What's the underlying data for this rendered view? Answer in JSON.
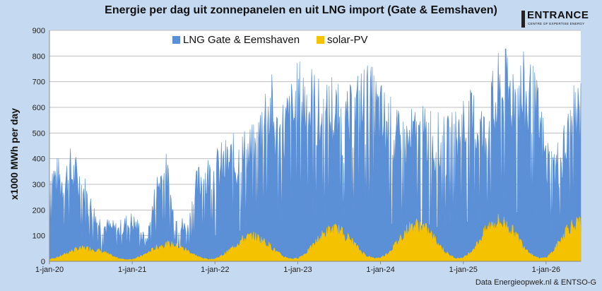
{
  "chart_data": {
    "type": "area",
    "title": "Energie per dag uit zonnepanelen en uit LNG import (Gate & Eemshaven)",
    "ylabel": "x1000 MWh per day",
    "xlabel": "",
    "ylim": [
      0,
      900
    ],
    "yticks": [
      "0",
      "100",
      "200",
      "300",
      "400",
      "500",
      "600",
      "700",
      "800",
      "900"
    ],
    "x_tick_labels": [
      "1-jan-20",
      "1-jan-21",
      "1-jan-22",
      "1-jan-23",
      "1-jan-24",
      "1-jan-25",
      "1-jan-26"
    ],
    "x_range_years": [
      2020.0,
      2026.42
    ],
    "grid": "horizontal",
    "legend_position": "top-center",
    "series": [
      {
        "name": "LNG Gate & Eemshaven",
        "color": "#5b8fd6",
        "x": [
          2020.0,
          2020.08,
          2020.17,
          2020.25,
          2020.33,
          2020.42,
          2020.5,
          2020.58,
          2020.67,
          2020.75,
          2020.83,
          2020.92,
          2021.0,
          2021.08,
          2021.17,
          2021.25,
          2021.33,
          2021.42,
          2021.5,
          2021.58,
          2021.67,
          2021.75,
          2021.83,
          2021.92,
          2022.0,
          2022.08,
          2022.17,
          2022.25,
          2022.33,
          2022.42,
          2022.5,
          2022.58,
          2022.67,
          2022.75,
          2022.83,
          2022.92,
          2023.0,
          2023.08,
          2023.17,
          2023.25,
          2023.33,
          2023.42,
          2023.5,
          2023.58,
          2023.67,
          2023.75,
          2023.83,
          2023.92,
          2024.0,
          2024.08,
          2024.17,
          2024.25,
          2024.33,
          2024.42,
          2024.5,
          2024.58,
          2024.67,
          2024.75,
          2024.83,
          2024.92,
          2025.0,
          2025.08,
          2025.17,
          2025.25,
          2025.33,
          2025.42,
          2025.5,
          2025.58,
          2025.67,
          2025.75,
          2025.83,
          2025.92,
          2026.0,
          2026.08,
          2026.17,
          2026.25,
          2026.33,
          2026.42
        ],
        "y": [
          400,
          380,
          360,
          410,
          380,
          320,
          240,
          180,
          160,
          150,
          140,
          170,
          180,
          150,
          80,
          240,
          380,
          390,
          200,
          170,
          140,
          300,
          380,
          390,
          400,
          430,
          450,
          460,
          480,
          490,
          490,
          660,
          700,
          560,
          600,
          650,
          720,
          740,
          710,
          660,
          620,
          700,
          620,
          600,
          650,
          700,
          720,
          690,
          650,
          620,
          560,
          520,
          540,
          560,
          550,
          580,
          540,
          520,
          520,
          560,
          620,
          610,
          640,
          560,
          660,
          740,
          770,
          780,
          760,
          740,
          720,
          620,
          460,
          420,
          450,
          540,
          620,
          680
        ]
      },
      {
        "name": "solar-PV",
        "color": "#f5c200",
        "x": [
          2020.0,
          2020.08,
          2020.17,
          2020.25,
          2020.33,
          2020.42,
          2020.5,
          2020.58,
          2020.67,
          2020.75,
          2020.83,
          2020.92,
          2021.0,
          2021.08,
          2021.17,
          2021.25,
          2021.33,
          2021.42,
          2021.5,
          2021.58,
          2021.67,
          2021.75,
          2021.83,
          2021.92,
          2022.0,
          2022.08,
          2022.17,
          2022.25,
          2022.33,
          2022.42,
          2022.5,
          2022.58,
          2022.67,
          2022.75,
          2022.83,
          2022.92,
          2023.0,
          2023.08,
          2023.17,
          2023.25,
          2023.33,
          2023.42,
          2023.5,
          2023.58,
          2023.67,
          2023.75,
          2023.83,
          2023.92,
          2024.0,
          2024.08,
          2024.17,
          2024.25,
          2024.33,
          2024.42,
          2024.5,
          2024.58,
          2024.67,
          2024.75,
          2024.83,
          2024.92,
          2025.0,
          2025.08,
          2025.17,
          2025.25,
          2025.33,
          2025.42,
          2025.5,
          2025.58,
          2025.67,
          2025.75,
          2025.83,
          2025.92,
          2026.0,
          2026.08,
          2026.17,
          2026.25,
          2026.33,
          2026.42
        ],
        "y": [
          8,
          14,
          25,
          38,
          48,
          52,
          50,
          44,
          34,
          22,
          12,
          7,
          8,
          16,
          30,
          46,
          60,
          68,
          66,
          56,
          42,
          26,
          14,
          8,
          10,
          22,
          42,
          66,
          86,
          98,
          96,
          82,
          60,
          36,
          18,
          10,
          12,
          28,
          56,
          88,
          112,
          126,
          122,
          102,
          74,
          44,
          22,
          12,
          14,
          30,
          62,
          98,
          128,
          144,
          140,
          116,
          84,
          50,
          24,
          12,
          14,
          34,
          70,
          112,
          144,
          158,
          150,
          126,
          90,
          54,
          26,
          12,
          14,
          38,
          80,
          130,
          145,
          148
        ]
      }
    ],
    "source": "Data Energieopwek.nl & ENTSO-G"
  },
  "logo": {
    "name": "ENTRANCE",
    "subtitle": "CENTRE OF EXPERTISE ENERGY"
  }
}
